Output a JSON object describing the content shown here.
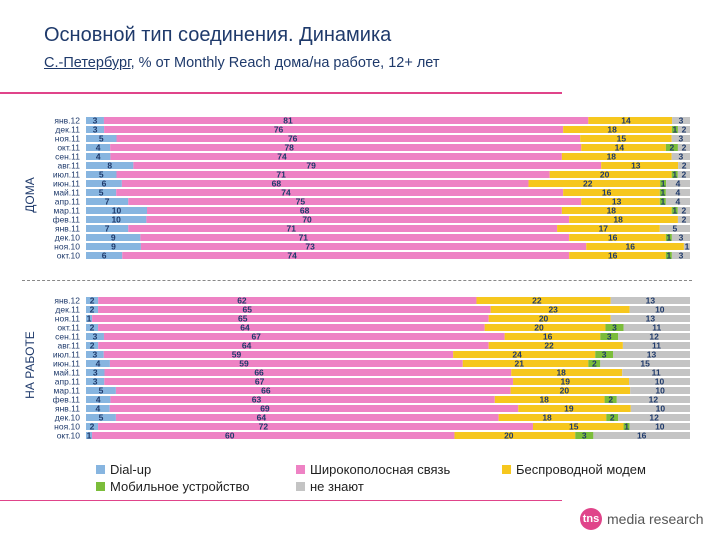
{
  "header": {
    "title": "Основной тип соединения. Динамика",
    "subtitle_place": "С.-Петербург",
    "subtitle_rest": ", % от Monthly Reach дома/на работе, 12+ лет"
  },
  "colors": {
    "dialup": "#87b5e0",
    "broadband": "#ee82c4",
    "wireless": "#f6c71e",
    "mobile": "#7bbd3a",
    "unknown": "#c4c4c4",
    "accent": "#e0448a"
  },
  "chart_data": [
    {
      "type": "bar",
      "stacked": true,
      "orientation": "horizontal",
      "panel_label": "ДОМА",
      "categories": [
        "янв.12",
        "дек.11",
        "ноя.11",
        "окт.11",
        "сен.11",
        "авг.11",
        "июл.11",
        "июн.11",
        "май.11",
        "апр.11",
        "мар.11",
        "фев.11",
        "янв.11",
        "дек.10",
        "ноя.10",
        "окт.10"
      ],
      "series": [
        {
          "name": "Dial-up",
          "key": "dialup",
          "values": [
            3,
            3,
            5,
            4,
            4,
            8,
            5,
            6,
            5,
            7,
            10,
            10,
            7,
            9,
            9,
            6
          ]
        },
        {
          "name": "Широкополосная связь",
          "key": "broadband",
          "values": [
            81,
            76,
            76,
            78,
            74,
            79,
            71,
            68,
            74,
            75,
            68,
            70,
            71,
            71,
            73,
            74
          ]
        },
        {
          "name": "Беспроводной модем",
          "key": "wireless",
          "values": [
            14,
            18,
            15,
            14,
            18,
            13,
            20,
            22,
            16,
            13,
            18,
            18,
            17,
            16,
            16,
            16
          ]
        },
        {
          "name": "Мобильное устройство",
          "key": "mobile",
          "values": [
            0,
            1,
            0,
            2,
            0,
            0,
            1,
            1,
            1,
            1,
            1,
            0,
            0,
            1,
            0,
            1
          ]
        },
        {
          "name": "не знают",
          "key": "unknown",
          "values": [
            3,
            2,
            3,
            2,
            3,
            2,
            2,
            4,
            4,
            4,
            2,
            2,
            5,
            3,
            1,
            3
          ]
        }
      ],
      "hidden_labels": {
        "mobile": [
          0,
          0,
          0,
          0,
          0,
          1,
          0,
          0,
          0,
          0,
          0,
          0,
          0,
          0,
          1,
          0
        ],
        "unknown": [
          0,
          0,
          0,
          0,
          0,
          0,
          0,
          0,
          0,
          0,
          0,
          0,
          0,
          0,
          0,
          0
        ]
      },
      "xlim": [
        0,
        100
      ]
    },
    {
      "type": "bar",
      "stacked": true,
      "orientation": "horizontal",
      "panel_label": "НА РАБОТЕ",
      "categories": [
        "янв.12",
        "дек.11",
        "ноя.11",
        "окт.11",
        "сен.11",
        "авг.11",
        "июл.11",
        "июн.11",
        "май.11",
        "апр.11",
        "мар.11",
        "фев.11",
        "янв.11",
        "дек.10",
        "ноя.10",
        "окт.10"
      ],
      "series": [
        {
          "name": "Dial-up",
          "key": "dialup",
          "values": [
            2,
            2,
            1,
            2,
            3,
            2,
            3,
            4,
            3,
            3,
            5,
            4,
            4,
            5,
            2,
            1
          ]
        },
        {
          "name": "Широкополосная связь",
          "key": "broadband",
          "values": [
            62,
            65,
            65,
            64,
            67,
            64,
            59,
            59,
            66,
            67,
            66,
            63,
            69,
            64,
            72,
            60
          ]
        },
        {
          "name": "Беспроводной модем",
          "key": "wireless",
          "values": [
            22,
            23,
            20,
            20,
            16,
            22,
            24,
            21,
            18,
            19,
            20,
            18,
            19,
            18,
            15,
            20
          ]
        },
        {
          "name": "Мобильное устройство",
          "key": "mobile",
          "values": [
            0,
            0,
            0,
            3,
            3,
            0,
            3,
            2,
            0,
            0,
            0,
            2,
            0,
            2,
            1,
            3
          ]
        },
        {
          "name": "не знают",
          "key": "unknown",
          "values": [
            13,
            10,
            13,
            11,
            12,
            11,
            13,
            15,
            11,
            10,
            10,
            12,
            10,
            12,
            10,
            16
          ]
        }
      ],
      "xlim": [
        0,
        100
      ]
    }
  ],
  "legend": [
    {
      "key": "dialup",
      "label": "Dial-up"
    },
    {
      "key": "broadband",
      "label": "Широкополосная связь"
    },
    {
      "key": "wireless",
      "label": "Беспроводной модем"
    },
    {
      "key": "mobile",
      "label": "Мобильное устройство"
    },
    {
      "key": "unknown",
      "label": "не знают"
    }
  ],
  "logo": {
    "mark": "tns",
    "text": "media research"
  }
}
